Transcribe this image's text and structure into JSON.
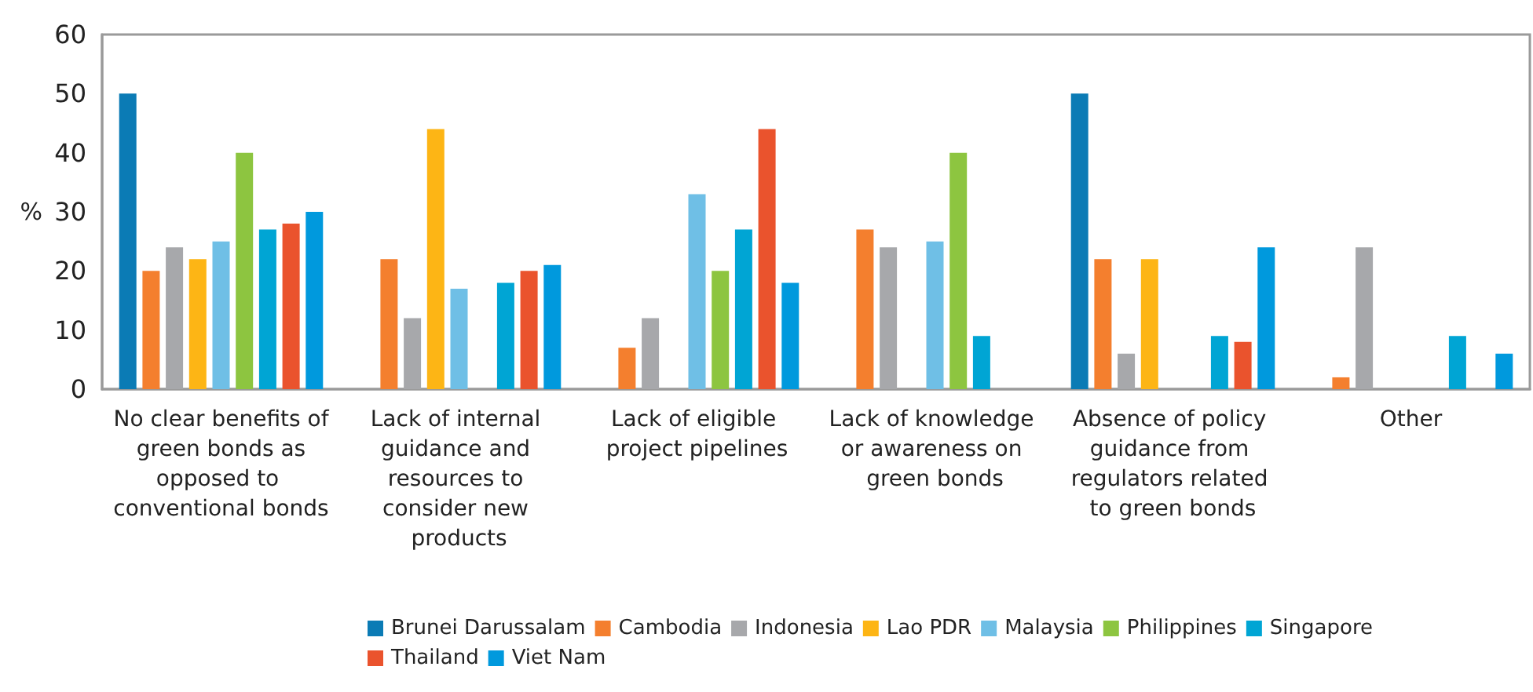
{
  "chart_data": {
    "type": "bar",
    "ylabel": "%",
    "categories": [
      "No clear benefits of green bonds as opposed to conventional bonds",
      "Lack of internal guidance and resources to consider new products",
      "Lack of eligible project pipelines",
      "Lack of knowledge or awareness on green bonds",
      "Absence of policy guidance from regulators related to green bonds",
      "Other"
    ],
    "series": [
      {
        "name": "Brunei Darussalam",
        "color": "#0b7bb5",
        "values": [
          50,
          null,
          null,
          null,
          50,
          null
        ]
      },
      {
        "name": "Cambodia",
        "color": "#f47f2e",
        "values": [
          20,
          22,
          7,
          27,
          22,
          2
        ]
      },
      {
        "name": "Indonesia",
        "color": "#a7a8ab",
        "values": [
          24,
          12,
          12,
          24,
          6,
          24
        ]
      },
      {
        "name": "Lao PDR",
        "color": "#fdb515",
        "values": [
          22,
          44,
          null,
          null,
          22,
          null
        ]
      },
      {
        "name": "Malaysia",
        "color": "#6fbfe6",
        "values": [
          25,
          17,
          33,
          25,
          null,
          null
        ]
      },
      {
        "name": "Philippines",
        "color": "#8dc540",
        "values": [
          40,
          null,
          20,
          40,
          null,
          null
        ]
      },
      {
        "name": "Singapore",
        "color": "#00a5d4",
        "values": [
          27,
          18,
          27,
          9,
          9,
          9
        ]
      },
      {
        "name": "Thailand",
        "color": "#ea532d",
        "values": [
          28,
          20,
          44,
          null,
          8,
          null
        ]
      },
      {
        "name": "Viet Nam",
        "color": "#0099dd",
        "values": [
          30,
          21,
          18,
          null,
          24,
          6
        ]
      }
    ],
    "ylim": [
      0,
      60
    ],
    "yticks": [
      0,
      10,
      20,
      30,
      40,
      50,
      60
    ],
    "grid": false,
    "legend": "bottom"
  }
}
